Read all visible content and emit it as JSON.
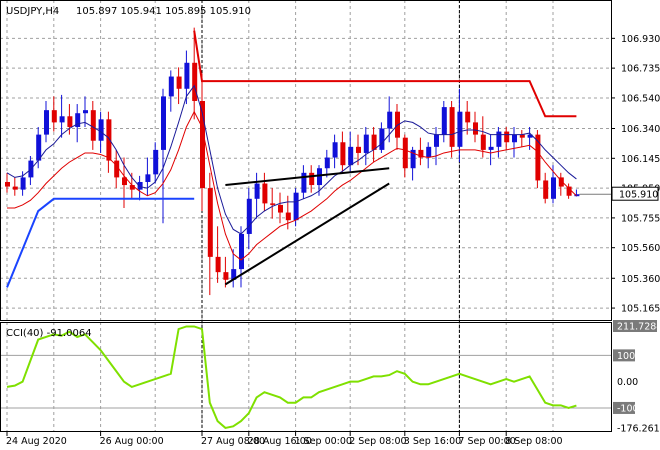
{
  "chart_data": {
    "type": "candlestick",
    "symbol_label": "USDJPY,H4",
    "ohlc_label": "105.897 105.941 105.895 105.910",
    "last_price_label": "105.910",
    "price_axis_labels": [
      "106.930",
      "106.735",
      "106.540",
      "106.340",
      "106.145",
      "105.950",
      "105.755",
      "105.560",
      "105.360",
      "105.165"
    ],
    "price_ylim": [
      105.1,
      107.05
    ],
    "time_labels": [
      "24 Aug 2020",
      "26 Aug 00:00",
      "27 Aug 08:00",
      "28 Aug 16:00",
      "1 Sep 00:00",
      "2 Sep 08:00",
      "3 Sep 16:00",
      "7 Sep 00:00",
      "8 Sep 08:00"
    ],
    "colors": {
      "up": "#1010d8",
      "down": "#e00000",
      "ma_fast": "#1a1a99",
      "ma_slow": "#e00000",
      "upper_band": "#e00000",
      "lower_band": "#1a44ff",
      "cci": "#7fe000",
      "trend": "#000000"
    },
    "candles": [
      [
        105.99,
        106.05,
        105.92,
        105.96
      ],
      [
        105.96,
        106.02,
        105.9,
        105.94
      ],
      [
        105.94,
        106.06,
        105.9,
        106.02
      ],
      [
        106.02,
        106.16,
        105.97,
        106.13
      ],
      [
        106.13,
        106.35,
        106.08,
        106.3
      ],
      [
        106.3,
        106.52,
        106.25,
        106.46
      ],
      [
        106.46,
        106.55,
        106.32,
        106.38
      ],
      [
        106.38,
        106.56,
        106.28,
        106.42
      ],
      [
        106.42,
        106.5,
        106.3,
        106.35
      ],
      [
        106.35,
        106.5,
        106.25,
        106.44
      ],
      [
        106.44,
        106.55,
        106.35,
        106.46
      ],
      [
        106.46,
        106.52,
        106.2,
        106.26
      ],
      [
        106.26,
        106.45,
        106.18,
        106.4
      ],
      [
        106.4,
        106.45,
        106.05,
        106.13
      ],
      [
        106.13,
        106.2,
        105.95,
        106.02
      ],
      [
        106.02,
        106.15,
        105.82,
        105.97
      ],
      [
        105.97,
        106.05,
        105.88,
        105.94
      ],
      [
        105.94,
        106.03,
        105.87,
        105.99
      ],
      [
        105.99,
        106.15,
        105.9,
        106.04
      ],
      [
        106.04,
        106.25,
        105.98,
        106.2
      ],
      [
        106.2,
        106.6,
        105.72,
        106.55
      ],
      [
        106.55,
        106.72,
        106.45,
        106.68
      ],
      [
        106.68,
        106.74,
        106.5,
        106.6
      ],
      [
        106.6,
        106.85,
        106.5,
        106.77
      ],
      [
        106.77,
        107.0,
        106.4,
        106.52
      ],
      [
        106.52,
        106.7,
        105.8,
        105.95
      ],
      [
        105.95,
        106.05,
        105.25,
        105.5
      ],
      [
        105.5,
        105.7,
        105.33,
        105.4
      ],
      [
        105.4,
        105.5,
        105.3,
        105.35
      ],
      [
        105.35,
        105.55,
        105.3,
        105.42
      ],
      [
        105.42,
        105.7,
        105.3,
        105.65
      ],
      [
        105.65,
        105.95,
        105.55,
        105.88
      ],
      [
        105.88,
        106.05,
        105.75,
        105.98
      ],
      [
        105.98,
        106.05,
        105.8,
        105.85
      ],
      [
        105.85,
        105.95,
        105.75,
        105.84
      ],
      [
        105.84,
        105.92,
        105.72,
        105.79
      ],
      [
        105.79,
        105.9,
        105.68,
        105.74
      ],
      [
        105.74,
        105.95,
        105.7,
        105.92
      ],
      [
        105.92,
        106.1,
        105.88,
        106.05
      ],
      [
        106.05,
        106.1,
        105.92,
        105.97
      ],
      [
        105.97,
        106.1,
        105.9,
        106.08
      ],
      [
        106.08,
        106.2,
        106.02,
        106.15
      ],
      [
        106.15,
        106.3,
        106.08,
        106.25
      ],
      [
        106.25,
        106.32,
        106.05,
        106.1
      ],
      [
        106.1,
        106.32,
        106.05,
        106.22
      ],
      [
        106.22,
        106.3,
        106.1,
        106.18
      ],
      [
        106.18,
        106.35,
        106.1,
        106.3
      ],
      [
        106.3,
        106.35,
        106.12,
        106.2
      ],
      [
        106.2,
        106.38,
        106.18,
        106.34
      ],
      [
        106.34,
        106.55,
        106.25,
        106.45
      ],
      [
        106.45,
        106.5,
        106.2,
        106.28
      ],
      [
        106.28,
        106.3,
        106.02,
        106.08
      ],
      [
        106.08,
        106.22,
        106.0,
        106.2
      ],
      [
        106.2,
        106.28,
        106.1,
        106.15
      ],
      [
        106.15,
        106.25,
        106.08,
        106.22
      ],
      [
        106.22,
        106.35,
        106.1,
        106.3
      ],
      [
        106.3,
        106.52,
        106.25,
        106.48
      ],
      [
        106.48,
        106.52,
        106.15,
        106.22
      ],
      [
        106.22,
        106.6,
        106.12,
        106.45
      ],
      [
        106.45,
        106.52,
        106.3,
        106.38
      ],
      [
        106.38,
        106.45,
        106.25,
        106.3
      ],
      [
        106.3,
        106.42,
        106.15,
        106.2
      ],
      [
        106.2,
        106.3,
        106.1,
        106.22
      ],
      [
        106.22,
        106.35,
        106.15,
        106.32
      ],
      [
        106.32,
        106.35,
        106.2,
        106.25
      ],
      [
        106.25,
        106.35,
        106.15,
        106.3
      ],
      [
        106.3,
        106.33,
        106.22,
        106.28
      ],
      [
        106.28,
        106.35,
        106.2,
        106.3
      ],
      [
        106.3,
        106.33,
        105.95,
        106.0
      ],
      [
        106.0,
        106.05,
        105.85,
        105.88
      ],
      [
        105.88,
        106.1,
        105.85,
        106.02
      ],
      [
        106.02,
        106.05,
        105.9,
        105.96
      ],
      [
        105.96,
        105.98,
        105.88,
        105.9
      ],
      [
        105.897,
        105.941,
        105.895,
        105.91
      ]
    ],
    "ma_fast": [
      106.05,
      106.02,
      106.03,
      106.07,
      106.13,
      106.2,
      106.24,
      106.3,
      106.34,
      106.37,
      106.38,
      106.35,
      106.32,
      106.28,
      106.2,
      106.1,
      106.02,
      105.96,
      105.95,
      105.99,
      106.08,
      106.22,
      106.38,
      106.55,
      106.62,
      106.45,
      106.2,
      105.95,
      105.78,
      105.68,
      105.65,
      105.7,
      105.76,
      105.8,
      105.83,
      105.85,
      105.86,
      105.86,
      105.88,
      105.9,
      105.93,
      105.98,
      106.03,
      106.06,
      106.1,
      106.13,
      106.17,
      106.2,
      106.24,
      106.3,
      106.36,
      106.39,
      106.38,
      106.35,
      106.31,
      106.3,
      106.3,
      106.3,
      106.32,
      106.33,
      106.33,
      106.32,
      106.3,
      106.3,
      106.3,
      106.3,
      106.3,
      106.31,
      106.26,
      106.2,
      106.15,
      106.1,
      106.05,
      106.01
    ],
    "ma_slow": [
      105.82,
      105.82,
      105.84,
      105.87,
      105.92,
      105.98,
      106.03,
      106.08,
      106.12,
      106.15,
      106.18,
      106.18,
      106.17,
      106.15,
      106.1,
      106.03,
      105.97,
      105.93,
      105.9,
      105.92,
      105.98,
      106.07,
      106.2,
      106.35,
      106.45,
      106.35,
      106.1,
      105.85,
      105.65,
      105.52,
      105.48,
      105.52,
      105.58,
      105.62,
      105.66,
      105.7,
      105.72,
      105.74,
      105.77,
      105.8,
      105.84,
      105.88,
      105.93,
      105.97,
      106.0,
      106.04,
      106.08,
      106.12,
      106.15,
      106.18,
      106.21,
      106.2,
      106.18,
      106.16,
      106.15,
      106.16,
      106.18,
      106.19,
      106.2,
      106.2,
      106.2,
      106.19,
      106.18,
      106.19,
      106.2,
      106.21,
      106.22,
      106.23,
      106.19,
      106.12,
      106.06,
      106.0,
      105.95,
      105.9
    ],
    "upper_band": [
      [
        24,
        106.98
      ],
      [
        25,
        106.65
      ],
      [
        67,
        106.65
      ],
      [
        69,
        106.42
      ],
      [
        73,
        106.42
      ]
    ],
    "lower_band": [
      [
        0,
        105.3
      ],
      [
        4,
        105.8
      ],
      [
        6,
        105.88
      ],
      [
        24,
        105.88
      ]
    ],
    "trendlines": [
      [
        [
          28,
          105.32
        ],
        [
          49,
          105.98
        ]
      ],
      [
        [
          28,
          105.97
        ],
        [
          49,
          106.08
        ]
      ]
    ],
    "cci_label": "CCI(40) -91.0064",
    "cci_levels": [
      "211.7284",
      "100",
      "0.00",
      "-100",
      "-176.2619"
    ],
    "cci_ylim": [
      -176.2619,
      211.7284
    ],
    "cci": [
      -20,
      -15,
      0,
      80,
      160,
      170,
      180,
      175,
      190,
      170,
      180,
      150,
      120,
      80,
      40,
      0,
      -20,
      -10,
      0,
      10,
      20,
      30,
      200,
      210,
      210,
      200,
      -80,
      -150,
      -176,
      -170,
      -150,
      -120,
      -60,
      -40,
      -50,
      -60,
      -80,
      -80,
      -60,
      -60,
      -40,
      -30,
      -20,
      -10,
      0,
      0,
      10,
      20,
      20,
      25,
      40,
      30,
      0,
      -10,
      -10,
      0,
      10,
      20,
      30,
      20,
      10,
      0,
      -10,
      0,
      10,
      0,
      10,
      20,
      -30,
      -80,
      -90,
      -90,
      -100,
      -91
    ]
  }
}
